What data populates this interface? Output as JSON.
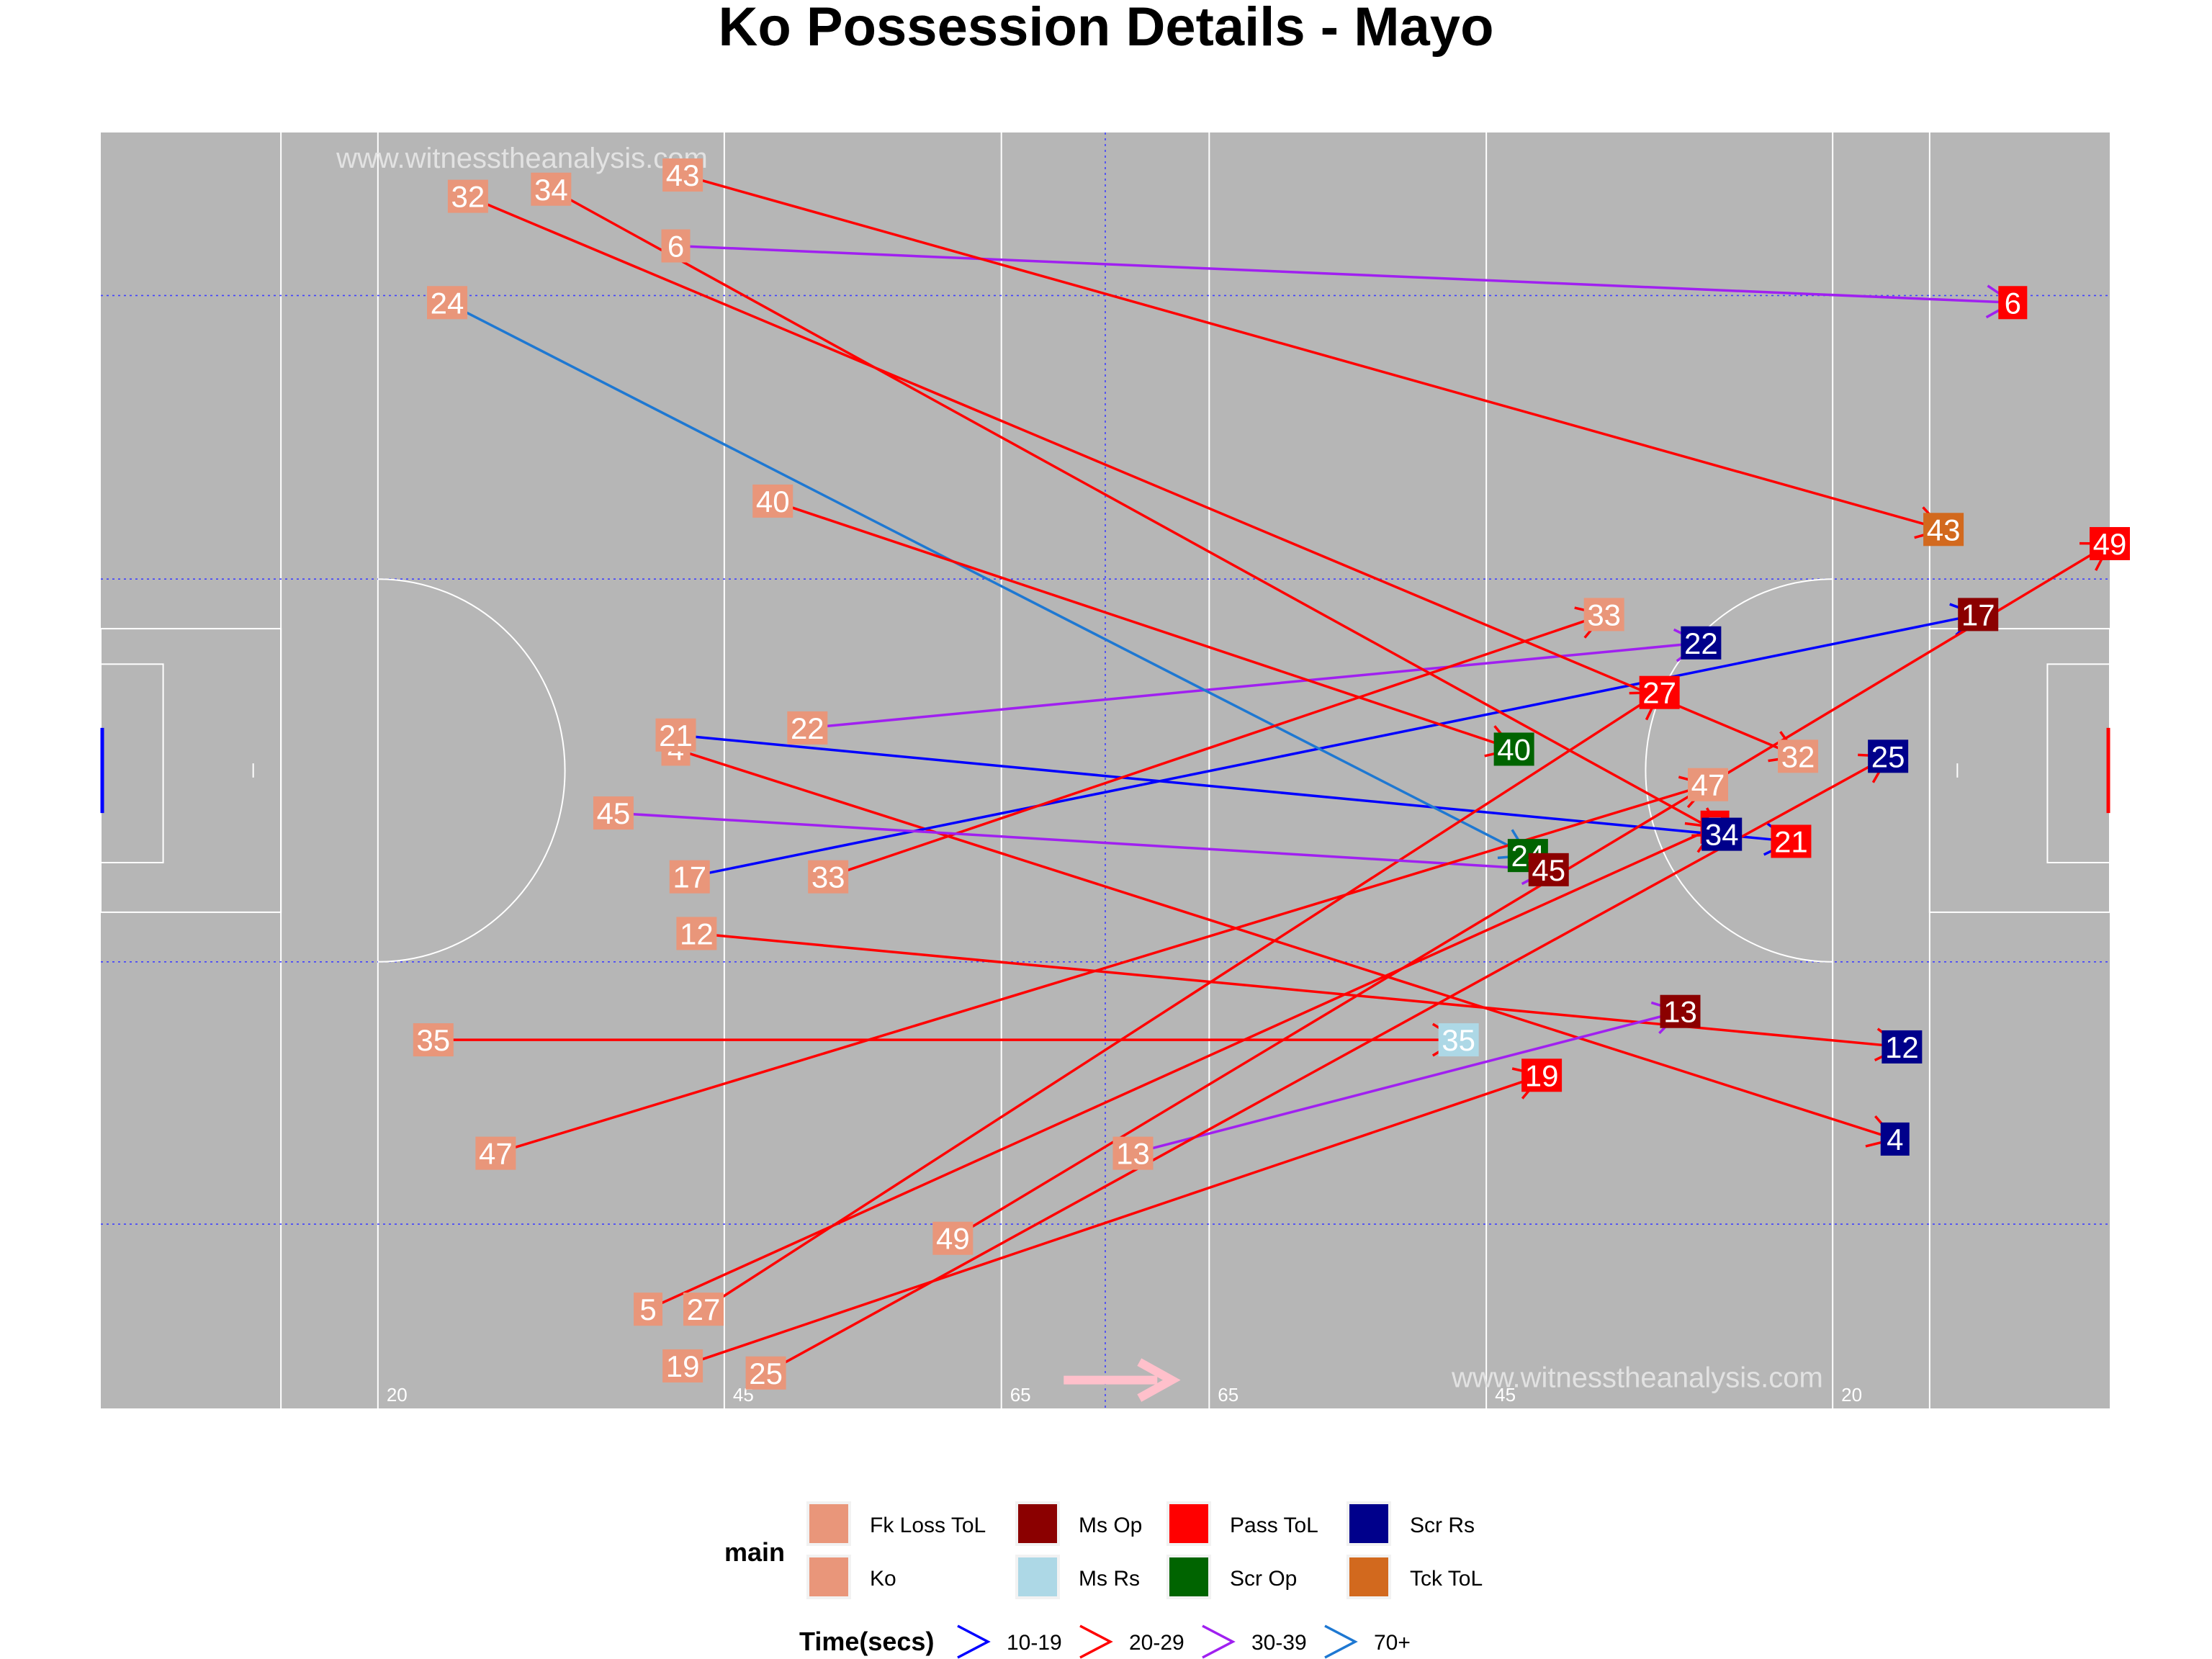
{
  "title": "Ko Possession Details - Mayo",
  "chart_data": {
    "type": "scatter",
    "title": "Ko Possession Details - Mayo",
    "x_range": [
      0,
      145
    ],
    "y_range": [
      0,
      90
    ],
    "field_markings": {
      "line_labels": [
        "20",
        "45",
        "65",
        "65",
        "45",
        "20"
      ],
      "watermark": "www.witnesstheanalysis.com"
    },
    "categories": {
      "Fk Loss ToL": "#E9967A",
      "Ko": "#E9967A",
      "Ms Op": "#8B0000",
      "Ms Rs": "#ADD8E6",
      "Pass ToL": "#FF0000",
      "Scr Op": "#006400",
      "Scr Rs": "#00008B",
      "Tck ToL": "#D2691E"
    },
    "time_bands": [
      {
        "label": "10-19",
        "color": "#0000FF"
      },
      {
        "label": "20-29",
        "color": "#FF0000"
      },
      {
        "label": "30-39",
        "color": "#A020F0"
      },
      {
        "label": "70+",
        "color": "#1E78D2"
      }
    ],
    "possessions": [
      {
        "id": "4",
        "start": [
          41.5,
          46.5
        ],
        "end": [
          129.5,
          19.0
        ],
        "end_type": "Scr Rs",
        "time": "20-29"
      },
      {
        "id": "5",
        "start": [
          39.5,
          7.0
        ],
        "end": [
          116.5,
          41.0
        ],
        "end_type": "Pass ToL",
        "time": "20-29"
      },
      {
        "id": "6",
        "start": [
          41.5,
          82.0
        ],
        "end": [
          138.0,
          78.0
        ],
        "end_type": "Pass ToL",
        "time": "30-39"
      },
      {
        "id": "12",
        "start": [
          43.0,
          33.5
        ],
        "end": [
          130.0,
          25.5
        ],
        "end_type": "Scr Rs",
        "time": "20-29"
      },
      {
        "id": "13",
        "start": [
          74.5,
          18.0
        ],
        "end": [
          114.0,
          28.0
        ],
        "end_type": "Ms Op",
        "time": "30-39"
      },
      {
        "id": "17",
        "start": [
          42.5,
          37.5
        ],
        "end": [
          135.5,
          56.0
        ],
        "end_type": "Ms Op",
        "time": "10-19"
      },
      {
        "id": "19",
        "start": [
          42.0,
          3.0
        ],
        "end": [
          104.0,
          23.5
        ],
        "end_type": "Pass ToL",
        "time": "20-29"
      },
      {
        "id": "21",
        "start": [
          41.5,
          47.5
        ],
        "end": [
          122.0,
          40.0
        ],
        "end_type": "Pass ToL",
        "time": "10-19"
      },
      {
        "id": "22",
        "start": [
          51.0,
          48.0
        ],
        "end": [
          115.5,
          54.0
        ],
        "end_type": "Scr Rs",
        "time": "30-39"
      },
      {
        "id": "24",
        "start": [
          25.0,
          78.0
        ],
        "end": [
          103.0,
          39.0
        ],
        "end_type": "Scr Op",
        "time": "70+"
      },
      {
        "id": "25",
        "start": [
          48.0,
          2.5
        ],
        "end": [
          129.0,
          46.0
        ],
        "end_type": "Scr Rs",
        "time": "20-29"
      },
      {
        "id": "27",
        "start": [
          43.5,
          7.0
        ],
        "end": [
          112.5,
          50.5
        ],
        "end_type": "Pass ToL",
        "time": "20-29"
      },
      {
        "id": "32",
        "start": [
          26.5,
          85.5
        ],
        "end": [
          122.5,
          46.0
        ],
        "end_type": "Fk Loss ToL",
        "time": "20-29"
      },
      {
        "id": "33",
        "start": [
          52.5,
          37.5
        ],
        "end": [
          108.5,
          56.0
        ],
        "end_type": "Fk Loss ToL",
        "time": "20-29"
      },
      {
        "id": "34",
        "start": [
          32.5,
          86.0
        ],
        "end": [
          117.0,
          40.5
        ],
        "end_type": "Scr Rs",
        "time": "20-29"
      },
      {
        "id": "35",
        "start": [
          24.0,
          26.0
        ],
        "end": [
          98.0,
          26.0
        ],
        "end_type": "Ms Rs",
        "time": "20-29"
      },
      {
        "id": "40",
        "start": [
          48.5,
          64.0
        ],
        "end": [
          102.0,
          46.5
        ],
        "end_type": "Scr Op",
        "time": "20-29"
      },
      {
        "id": "43",
        "start": [
          42.0,
          87.0
        ],
        "end": [
          133.0,
          62.0
        ],
        "end_type": "Tck ToL",
        "time": "20-29"
      },
      {
        "id": "45",
        "start": [
          37.0,
          42.0
        ],
        "end": [
          104.5,
          38.0
        ],
        "end_type": "Ms Op",
        "time": "30-39"
      },
      {
        "id": "47",
        "start": [
          28.5,
          18.0
        ],
        "end": [
          116.0,
          44.0
        ],
        "end_type": "Fk Loss ToL",
        "time": "20-29"
      },
      {
        "id": "49",
        "start": [
          61.5,
          12.0
        ],
        "end": [
          145.0,
          61.0
        ],
        "end_type": "Pass ToL",
        "time": "20-29"
      }
    ]
  },
  "legend": {
    "main_title": "main",
    "time_title": "Time(secs)",
    "items": [
      {
        "label": "Fk Loss ToL",
        "color": "#E9967A"
      },
      {
        "label": "Ko",
        "color": "#E9967A"
      },
      {
        "label": "Ms Op",
        "color": "#8B0000"
      },
      {
        "label": "Ms Rs",
        "color": "#ADD8E6"
      },
      {
        "label": "Pass ToL",
        "color": "#FF0000"
      },
      {
        "label": "Scr Op",
        "color": "#006400"
      },
      {
        "label": "Scr Rs",
        "color": "#00008B"
      },
      {
        "label": "Tck ToL",
        "color": "#D2691E"
      }
    ]
  }
}
